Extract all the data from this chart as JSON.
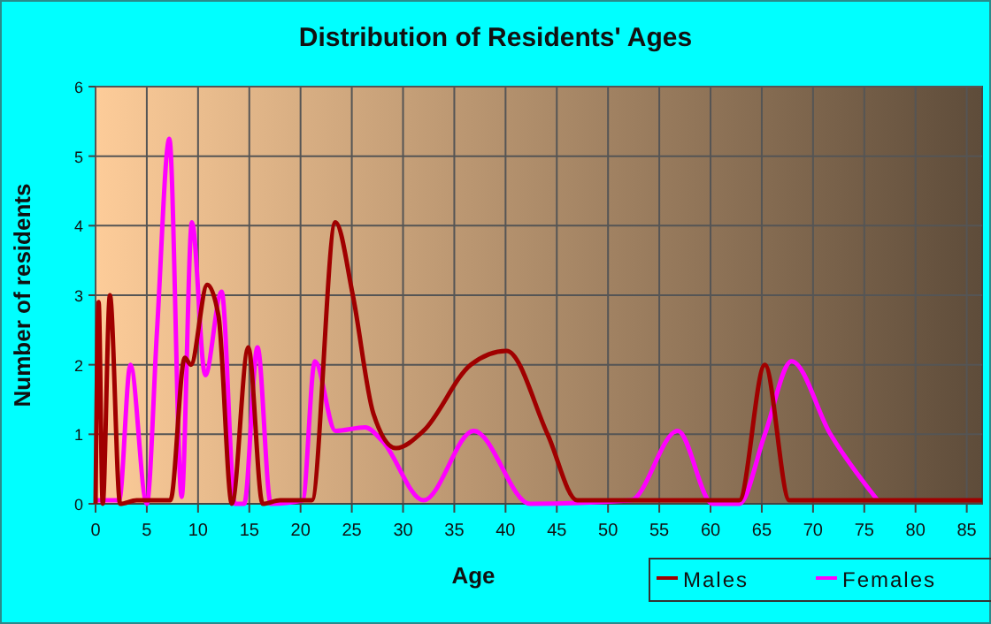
{
  "chart_data": {
    "type": "line",
    "title": "Distribution of Residents' Ages",
    "xlabel": "Age",
    "ylabel": "Number of residents",
    "xlim": [
      0,
      86.5
    ],
    "xticks": [
      0,
      5,
      10,
      15,
      20,
      25,
      30,
      35,
      40,
      45,
      50,
      55,
      60,
      65,
      70,
      75,
      80,
      85
    ],
    "ylim": [
      0,
      6
    ],
    "yticks": [
      0,
      1,
      2,
      3,
      4,
      5,
      6
    ],
    "grid": true,
    "legend": "bottom right",
    "marker": "none",
    "line_style": "solid",
    "series": [
      {
        "name": "Males",
        "color": "#a00000",
        "x": [
          0,
          0.3,
          0.7,
          1.4,
          2.4,
          4,
          7.3,
          8.7,
          9.3,
          10.9,
          12,
          13.3,
          14.9,
          16.3,
          18,
          21.1,
          23.4,
          25.1,
          27.1,
          29.3,
          32,
          36.6,
          40.1,
          44.1,
          47,
          55,
          62.8,
          65.3,
          67.7,
          75,
          86.5
        ],
        "values": [
          0,
          2.9,
          0,
          3,
          0,
          0.05,
          0.05,
          2.1,
          2,
          3.15,
          2.7,
          0,
          2.25,
          0,
          0.05,
          0.05,
          4.05,
          3,
          1.3,
          0.8,
          1.05,
          2,
          2.2,
          1,
          0.05,
          0.05,
          0.05,
          2,
          0.05,
          0.05,
          0.05
        ]
      },
      {
        "name": "Females",
        "color": "#ff00ff",
        "x": [
          0,
          2.3,
          3.4,
          5,
          6,
          7.2,
          8.4,
          9.4,
          10.7,
          12.3,
          13.6,
          14.5,
          15.8,
          17.1,
          20.2,
          21.4,
          23.4,
          26.3,
          28,
          32,
          36.9,
          42.4,
          52.2,
          56.8,
          60.2,
          62.8,
          65.3,
          67.9,
          71.7,
          76.3
        ],
        "values": [
          0.05,
          0.05,
          2,
          0,
          2.5,
          5.25,
          0.1,
          4.05,
          1.85,
          3.05,
          0,
          0,
          2.25,
          0,
          0.05,
          2.05,
          1.05,
          1.1,
          0.9,
          0.05,
          1.05,
          0,
          0.05,
          1.05,
          0,
          0,
          1,
          2.05,
          1,
          0.05
        ]
      }
    ]
  }
}
